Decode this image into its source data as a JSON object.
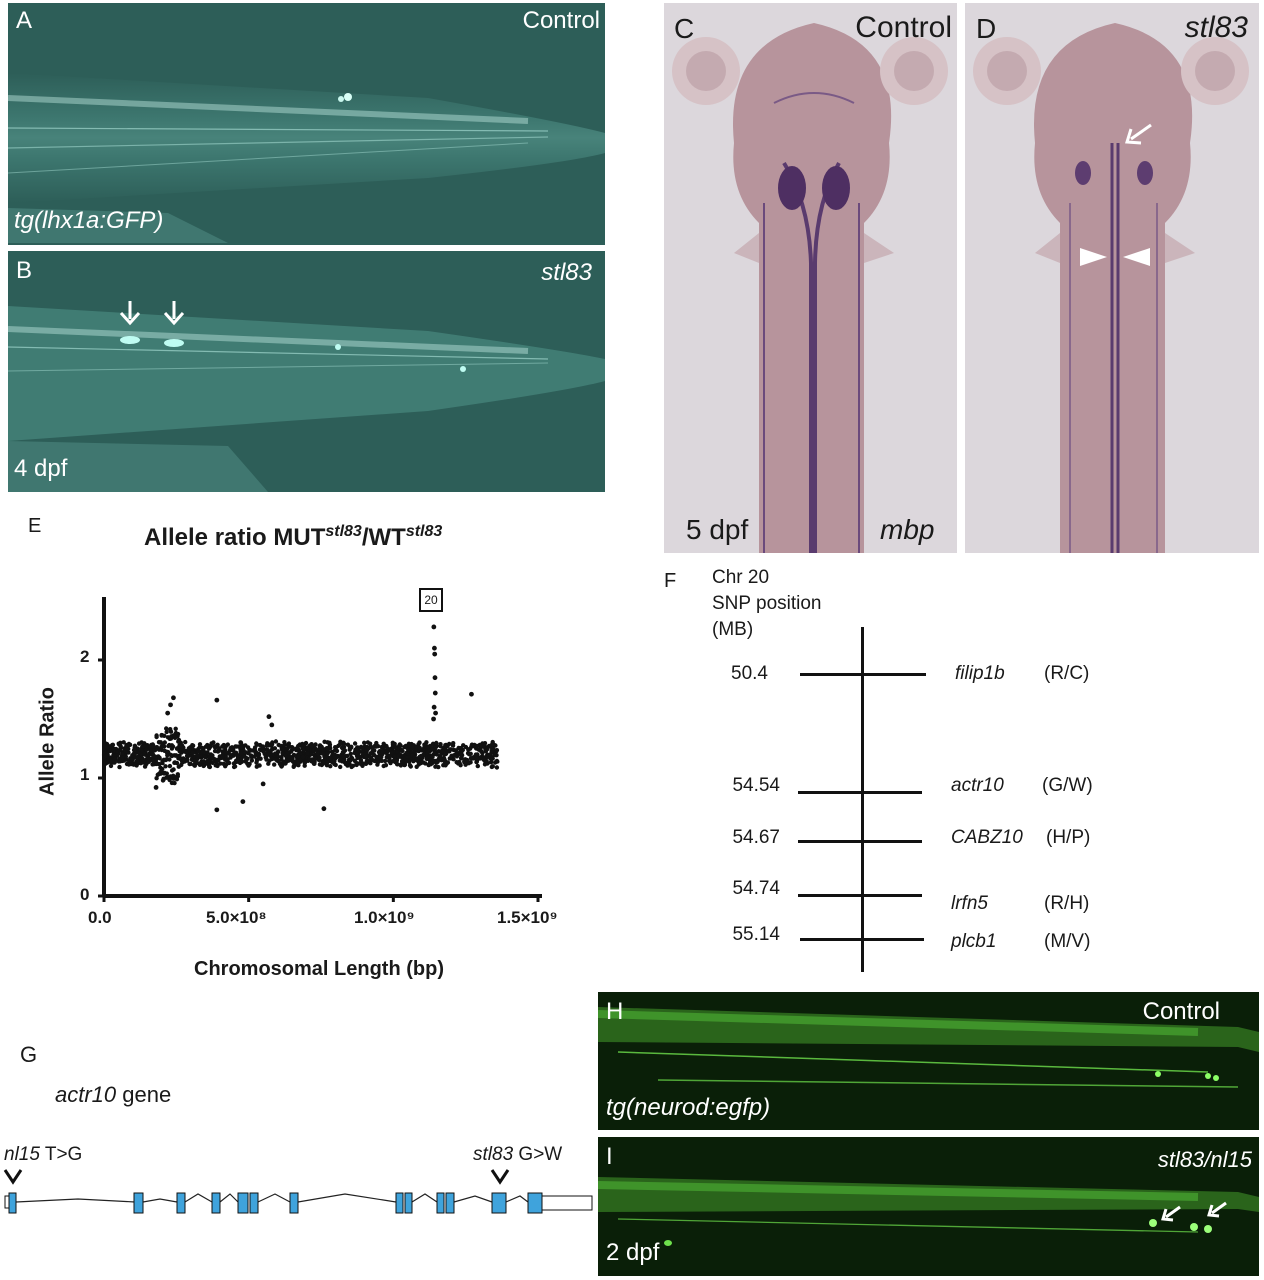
{
  "panels": {
    "A": {
      "letter": "A",
      "condition": "Control",
      "transgene": "tg(lhx1a:GFP)"
    },
    "B": {
      "letter": "B",
      "condition": "stl83",
      "age": "4 dpf"
    },
    "C": {
      "letter": "C",
      "condition": "Control",
      "age": "5 dpf",
      "probe": "mbp"
    },
    "D": {
      "letter": "D",
      "condition": "stl83"
    },
    "E": {
      "letter": "E"
    },
    "F": {
      "letter": "F",
      "header_line1": "Chr 20",
      "header_line2": "SNP position",
      "header_line3": "(MB)"
    },
    "G": {
      "letter": "G",
      "gene_name": "actr10",
      "gene_suffix": " gene",
      "mut1_name": "nl15",
      "mut1_change": " T>G",
      "mut2_name": "stl83",
      "mut2_change": " G>W"
    },
    "H": {
      "letter": "H",
      "condition": "Control",
      "transgene": "tg(neurod:egfp)"
    },
    "I": {
      "letter": "I",
      "condition": "stl83/nl15",
      "age": "2 dpf"
    }
  },
  "chart_data": {
    "type": "scatter",
    "title_prefix": "Allele ratio MUT",
    "title_sup1": "stl83",
    "title_mid": "/WT",
    "title_sup2": "stl83",
    "xlabel": "Chromosomal Length (bp)",
    "ylabel": "Allele Ratio",
    "xlim": [
      0,
      1500000000
    ],
    "ylim": [
      0,
      2.5
    ],
    "x_ticks": [
      "0.0",
      "5.0×10⁸",
      "1.0×10⁹",
      "1.5×10⁹"
    ],
    "y_ticks": [
      "0",
      "1",
      "2"
    ],
    "annotation": "20",
    "baseline_mean": 1.2,
    "peak_points": [
      {
        "x": 1140000000,
        "y": 2.28
      },
      {
        "x": 1142000000,
        "y": 2.1
      },
      {
        "x": 1143000000,
        "y": 2.05
      },
      {
        "x": 1144000000,
        "y": 1.85
      },
      {
        "x": 1145000000,
        "y": 1.72
      },
      {
        "x": 1141000000,
        "y": 1.6
      },
      {
        "x": 1146000000,
        "y": 1.55
      },
      {
        "x": 1139000000,
        "y": 1.5
      },
      {
        "x": 1270000000,
        "y": 1.71
      },
      {
        "x": 240000000,
        "y": 1.68
      },
      {
        "x": 230000000,
        "y": 1.62
      },
      {
        "x": 220000000,
        "y": 1.55
      },
      {
        "x": 390000000,
        "y": 1.66
      },
      {
        "x": 570000000,
        "y": 1.52
      },
      {
        "x": 580000000,
        "y": 1.45
      },
      {
        "x": 390000000,
        "y": 0.73
      },
      {
        "x": 480000000,
        "y": 0.8
      },
      {
        "x": 760000000,
        "y": 0.74
      },
      {
        "x": 550000000,
        "y": 0.95
      },
      {
        "x": 180000000,
        "y": 0.92
      }
    ]
  },
  "snp_table": [
    {
      "pos": "50.4",
      "gene": "filip1b",
      "aa": "(R/C)"
    },
    {
      "pos": "54.54",
      "gene": "actr10",
      "aa": "(G/W)"
    },
    {
      "pos": "54.67",
      "gene": "CABZ10",
      "aa": "(H/P)"
    },
    {
      "pos": "54.74",
      "gene": "lrfn5",
      "aa": "(R/H)"
    },
    {
      "pos": "55.14",
      "gene": "plcb1",
      "aa": "(M/V)"
    }
  ]
}
